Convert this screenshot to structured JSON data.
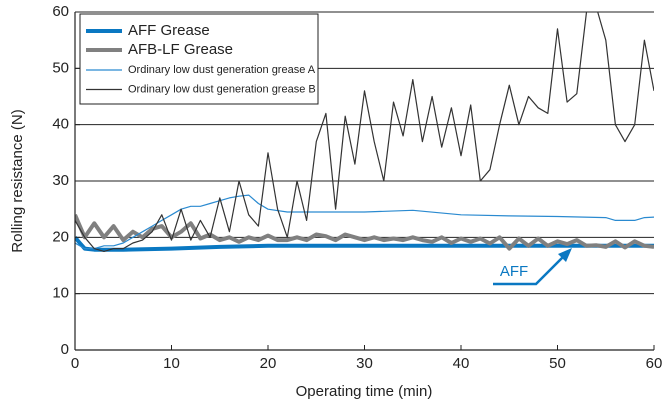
{
  "chart_data": {
    "type": "line",
    "xlabel": "Operating time (min)",
    "ylabel": "Rolling resistance (N)",
    "annotation": "AFF",
    "xlim": [
      0,
      60
    ],
    "xticks": [
      0,
      10,
      20,
      30,
      40,
      50,
      60
    ],
    "ylim": [
      0,
      60
    ],
    "yticks": [
      0,
      10,
      20,
      30,
      40,
      50,
      60
    ],
    "grid": true,
    "legend": "upper left",
    "series": [
      {
        "name": "AFF Grease",
        "color": "#0a78c2",
        "width": 4,
        "x": [
          0,
          0.5,
          1,
          2,
          5,
          10,
          15,
          20,
          30,
          40,
          50,
          60
        ],
        "values": [
          20,
          19,
          18,
          17.8,
          17.8,
          18,
          18.3,
          18.5,
          18.5,
          18.5,
          18.5,
          18.5
        ]
      },
      {
        "name": "AFB-LF Grease",
        "color": "#808080",
        "width": 4,
        "x": [
          0,
          1,
          2,
          3,
          4,
          5,
          6,
          7,
          8,
          9,
          10,
          11,
          12,
          13,
          14,
          15,
          16,
          17,
          18,
          19,
          20,
          21,
          22,
          23,
          24,
          25,
          26,
          27,
          28,
          29,
          30,
          31,
          32,
          33,
          34,
          35,
          36,
          37,
          38,
          39,
          40,
          41,
          42,
          43,
          44,
          45,
          46,
          47,
          48,
          49,
          50,
          51,
          52,
          53,
          54,
          55,
          56,
          57,
          58,
          59,
          60
        ],
        "values": [
          24,
          20,
          22.5,
          20,
          22,
          19.5,
          21,
          20,
          21.5,
          22,
          20,
          21,
          22.5,
          19.8,
          20.5,
          19.5,
          20,
          19.2,
          20,
          19.5,
          20.3,
          19.5,
          19.5,
          20,
          19.5,
          20.5,
          20.2,
          19.5,
          20.5,
          20,
          19.5,
          20,
          19.5,
          19.8,
          19.5,
          20,
          19.5,
          19.2,
          20,
          19,
          19.8,
          19.2,
          19.8,
          18.9,
          20,
          18,
          19.8,
          18.5,
          19.8,
          18.5,
          19.3,
          18.8,
          19.5,
          18.5,
          18.6,
          18.3,
          19.3,
          18.2,
          19.3,
          18.5,
          18.3
        ]
      },
      {
        "name": "Ordinary low dust generation grease A",
        "color": "#2a8ad0",
        "width": 1.2,
        "x": [
          0,
          1,
          2,
          3,
          4,
          5,
          6,
          7,
          8,
          9,
          10,
          11,
          12,
          13,
          14,
          15,
          16,
          17,
          18,
          19,
          20,
          22,
          25,
          30,
          35,
          40,
          45,
          50,
          55,
          56,
          58,
          59,
          60
        ],
        "values": [
          19,
          18,
          18,
          18.5,
          18.5,
          19,
          20,
          21,
          22,
          23,
          24,
          25,
          25.5,
          25.5,
          26,
          26.5,
          27,
          27.3,
          27.5,
          26,
          25,
          24.5,
          24.5,
          24.5,
          24.8,
          24,
          23.8,
          23.7,
          23.5,
          23,
          23,
          23.5,
          23.6
        ]
      },
      {
        "name": "Ordinary low dust generation grease B",
        "color": "#333333",
        "width": 1.2,
        "x": [
          0,
          1,
          2,
          3,
          4,
          5,
          6,
          7,
          8,
          9,
          10,
          11,
          12,
          13,
          14,
          15,
          16,
          17,
          18,
          19,
          20,
          21,
          22,
          23,
          24,
          25,
          26,
          27,
          28,
          29,
          30,
          31,
          32,
          33,
          34,
          35,
          36,
          37,
          38,
          39,
          40,
          41,
          42,
          43,
          44,
          45,
          46,
          47,
          48,
          49,
          50,
          51,
          52,
          53,
          54,
          55,
          56,
          57,
          58,
          59,
          60
        ],
        "values": [
          23,
          20,
          18,
          17.5,
          18,
          18,
          19,
          19.5,
          21,
          24,
          19.5,
          25,
          19.5,
          23,
          20,
          27,
          21,
          30,
          24,
          22,
          35,
          25,
          20,
          30,
          23,
          37,
          42,
          25,
          41.5,
          33,
          46,
          37,
          30,
          44,
          38,
          48,
          37,
          45,
          36,
          43,
          34.5,
          43.5,
          30,
          32,
          40,
          47,
          40,
          45,
          43,
          42,
          57,
          44,
          45.5,
          60,
          61,
          55,
          40,
          37,
          40,
          55,
          46
        ]
      }
    ]
  }
}
